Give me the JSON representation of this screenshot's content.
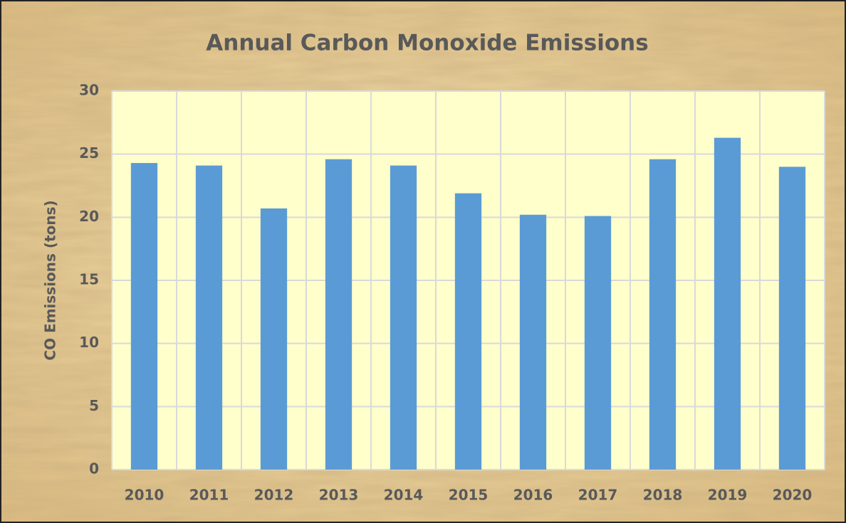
{
  "chart_data": {
    "type": "bar",
    "title": "Annual Carbon Monoxide Emissions",
    "y_label": "CO Emissions (tons)",
    "categories": [
      "2010",
      "2011",
      "2012",
      "2013",
      "2014",
      "2015",
      "2016",
      "2017",
      "2018",
      "2019",
      "2020"
    ],
    "values": [
      24.3,
      24.1,
      20.7,
      24.6,
      24.1,
      21.9,
      20.2,
      20.1,
      24.6,
      26.3,
      24.0
    ],
    "color": "#5b9bd5",
    "ylim": [
      0,
      30
    ],
    "yticks": [
      0,
      5,
      10,
      15,
      20,
      25,
      30
    ],
    "grid": true
  }
}
